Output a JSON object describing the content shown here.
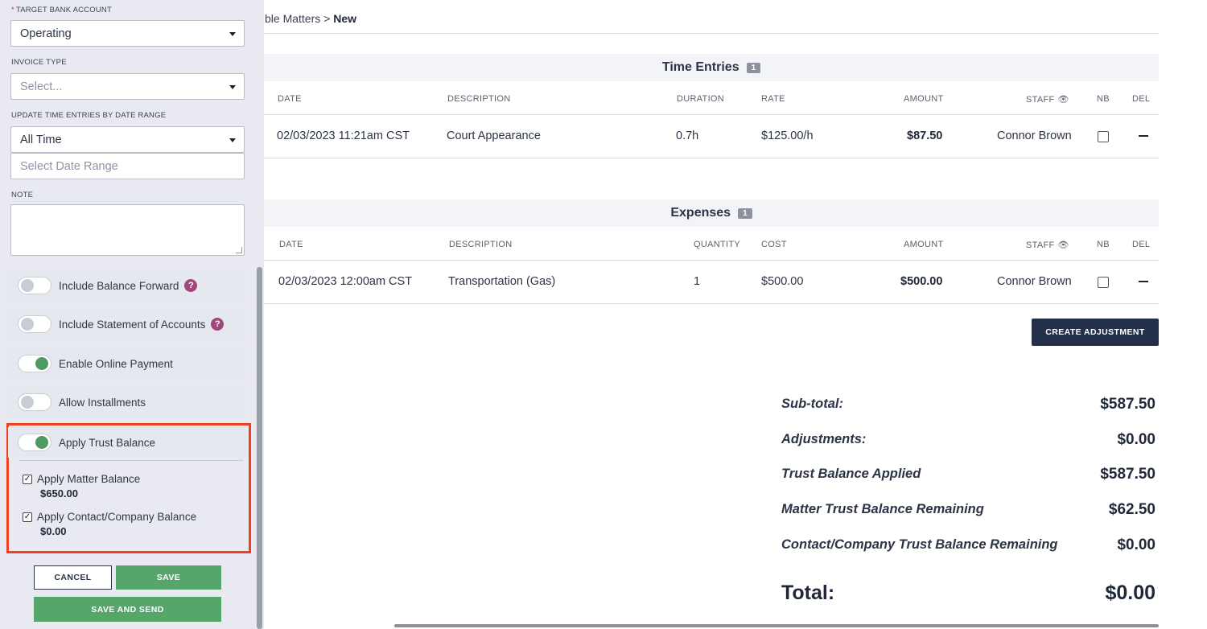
{
  "sidebar": {
    "target_bank_label": "TARGET BANK ACCOUNT",
    "target_bank_required": "*",
    "target_bank_value": "Operating",
    "invoice_type_label": "INVOICE TYPE",
    "invoice_type_placeholder": "Select...",
    "date_range_label": "UPDATE TIME ENTRIES BY DATE RANGE",
    "date_range_value": "All Time",
    "date_range_picker_placeholder": "Select Date Range",
    "note_label": "NOTE",
    "toggles": [
      {
        "label": "Include Balance Forward",
        "on": false,
        "help": true
      },
      {
        "label": "Include Statement of Accounts",
        "on": false,
        "help": true
      },
      {
        "label": "Enable Online Payment",
        "on": true,
        "help": false
      },
      {
        "label": "Allow Installments",
        "on": false,
        "help": false
      }
    ],
    "trust": {
      "toggle_label": "Apply Trust Balance",
      "toggle_on": true,
      "matter_label": "Apply Matter Balance",
      "matter_amount": "$650.00",
      "contact_label": "Apply Contact/Company Balance",
      "contact_amount": "$0.00"
    },
    "buttons": {
      "cancel": "CANCEL",
      "save": "SAVE",
      "save_send": "SAVE AND SEND"
    },
    "help_glyph": "?"
  },
  "breadcrumb": {
    "prev": "ble Matters",
    "sep": ">",
    "current": "New"
  },
  "time_entries": {
    "title": "Time Entries",
    "count": "1",
    "columns": [
      "DATE",
      "DESCRIPTION",
      "DURATION",
      "RATE",
      "AMOUNT",
      "STAFF",
      "NB",
      "DEL"
    ],
    "rows": [
      {
        "date": "02/03/2023 11:21am CST",
        "description": "Court Appearance",
        "duration": "0.7h",
        "rate": "$125.00/h",
        "amount": "$87.50",
        "staff": "Connor Brown"
      }
    ]
  },
  "expenses": {
    "title": "Expenses",
    "count": "1",
    "columns": [
      "DATE",
      "DESCRIPTION",
      "QUANTITY",
      "COST",
      "AMOUNT",
      "STAFF",
      "NB",
      "DEL"
    ],
    "rows": [
      {
        "date": "02/03/2023 12:00am CST",
        "description": "Transportation (Gas)",
        "quantity": "1",
        "cost": "$500.00",
        "amount": "$500.00",
        "staff": "Connor Brown"
      }
    ]
  },
  "create_adjustment": "CREATE ADJUSTMENT",
  "totals": {
    "subtotal_label": "Sub-total:",
    "subtotal": "$587.50",
    "adjustments_label": "Adjustments:",
    "adjustments": "$0.00",
    "trust_applied_label": "Trust Balance Applied",
    "trust_applied": "$587.50",
    "matter_remaining_label": "Matter Trust Balance Remaining",
    "matter_remaining": "$62.50",
    "contact_remaining_label": "Contact/Company Trust Balance Remaining",
    "contact_remaining": "$0.00",
    "total_label": "Total:",
    "total": "$0.00"
  },
  "icons": {
    "eye": "eye-icon",
    "check": "check-icon",
    "caret": "chevron-down-icon",
    "minus": "minus-icon"
  },
  "colors": {
    "accent_green": "#56a66b",
    "navy": "#243049",
    "highlight_red": "#f0401f",
    "help_purple": "#a0487d"
  }
}
